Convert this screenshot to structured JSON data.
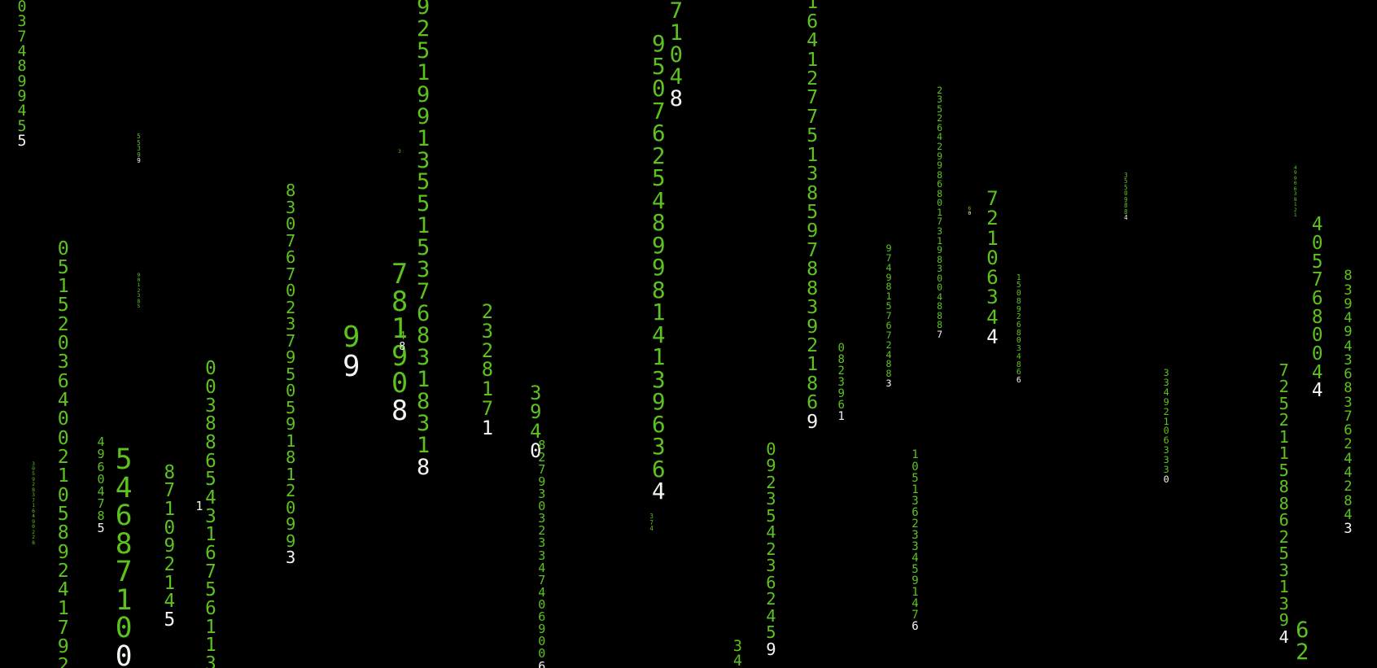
{
  "columns": [
    {
      "trail": "037489945",
      "head": "5"
    },
    {
      "trail": "5539",
      "head": "9"
    },
    {
      "trail": "05152036400210589241792"
    },
    {
      "trail": "3059283716490228"
    },
    {
      "trail": "4960478",
      "head": "5"
    },
    {
      "trail": "5468710",
      "head": "0"
    },
    {
      "trail": "9012385"
    },
    {
      "trail": "87109214",
      "head": "5"
    },
    {
      "head": "1"
    },
    {
      "trail": "00388654316756113"
    },
    {
      "trail": "8307670237950591812099",
      "head": "3"
    },
    {
      "trail": "9",
      "head": "9"
    },
    {
      "trail": "3"
    },
    {
      "trail": "78190",
      "head": "8"
    },
    {
      "trail": "4",
      "head": "8"
    },
    {
      "trail": "925199135515376831831",
      "head": "8"
    },
    {
      "trail": "232817",
      "head": "1"
    },
    {
      "trail": "394",
      "head": "0"
    },
    {
      "trail": "827930323347406900",
      "head": "6"
    },
    {
      "trail": "374"
    },
    {
      "trail": "95076254899814139636",
      "head": "4"
    },
    {
      "trail": "7104",
      "head": "8"
    },
    {
      "trail": "34"
    },
    {
      "trail": "092354236245",
      "head": "9"
    },
    {
      "trail": "1641277513859788392186",
      "head": "9"
    },
    {
      "trail": "082396",
      "head": "1"
    },
    {
      "trail": "97498157672488",
      "head": "3"
    },
    {
      "trail": "105136233459147",
      "head": "6"
    },
    {
      "trail": "23526429986801731983004888",
      "head": "7"
    },
    {
      "trail": "6",
      "head": "0"
    },
    {
      "trail": "7210634",
      "head": "4"
    },
    {
      "trail": "1508926803486",
      "head": "6"
    },
    {
      "trail": "3550988",
      "head": "4"
    },
    {
      "trail": "33492106333",
      "head": "0"
    },
    {
      "trail": "4990638121"
    },
    {
      "trail": "405768004",
      "head": "4"
    },
    {
      "trail": "839494368376244284",
      "head": "3"
    },
    {
      "trail": "7252115886253139",
      "head": "4"
    },
    {
      "trail": "62"
    }
  ]
}
